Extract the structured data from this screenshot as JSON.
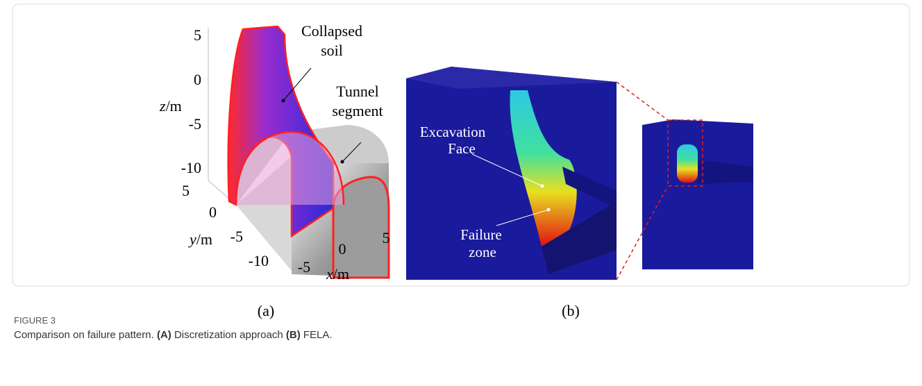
{
  "figure": {
    "panel_a": {
      "label": "(a)",
      "z_axis": {
        "var": "z",
        "unit": "/m",
        "ticks": [
          "5",
          "0",
          "-5",
          "-10"
        ]
      },
      "y_axis": {
        "var": "y",
        "unit": "/m",
        "ticks": [
          "5",
          "0",
          "-5",
          "-10"
        ]
      },
      "x_axis": {
        "var": "x",
        "unit": "/m",
        "ticks": [
          "-5",
          "0",
          "5"
        ]
      },
      "annotations": [
        [
          "Collapsed",
          "soil"
        ],
        [
          "Tunnel",
          "segment"
        ]
      ]
    },
    "panel_b": {
      "label": "(b)",
      "annotations": [
        [
          "Excavation",
          "Face"
        ],
        [
          "Failure",
          "zone"
        ]
      ]
    },
    "caption": {
      "number": "FIGURE 3",
      "parts": [
        {
          "text": "Comparison on failure pattern. "
        },
        {
          "text": "(A)",
          "bold": true
        },
        {
          "text": " Discretization approach "
        },
        {
          "text": "(B)",
          "bold": true
        },
        {
          "text": " FELA."
        }
      ]
    }
  }
}
